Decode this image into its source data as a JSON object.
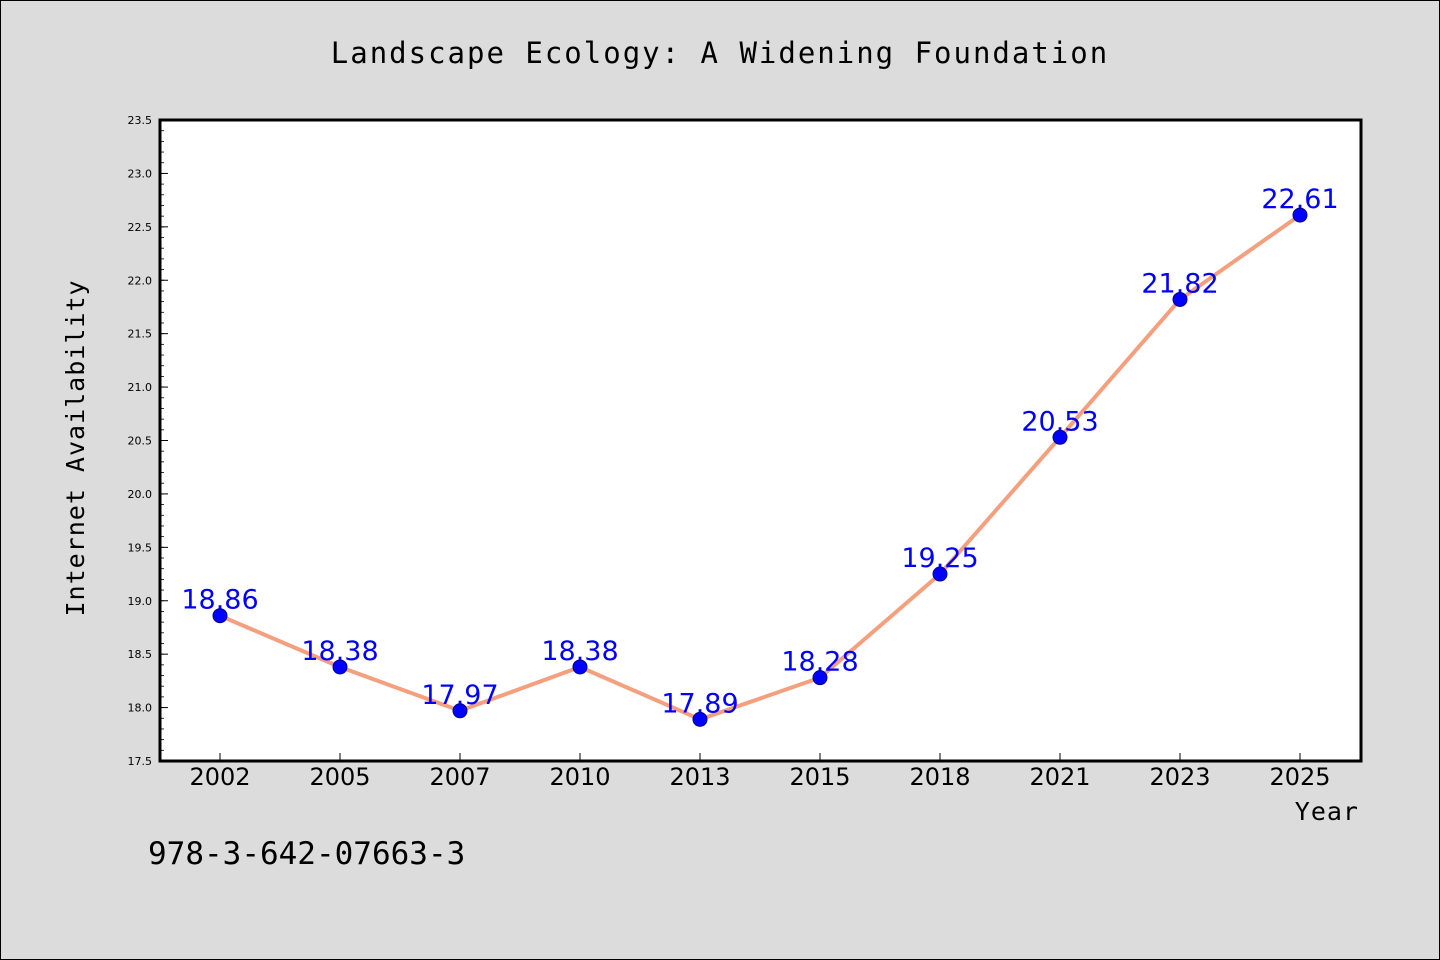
{
  "chart_data": {
    "type": "line",
    "title": "Landscape Ecology: A Widening Foundation",
    "xlabel": "Year",
    "ylabel": "Internet Availability",
    "categories": [
      "2002",
      "2005",
      "2007",
      "2010",
      "2013",
      "2015",
      "2018",
      "2021",
      "2023",
      "2025"
    ],
    "series": [
      {
        "values": [
          18.86,
          18.38,
          17.97,
          18.38,
          17.89,
          18.28,
          19.25,
          20.53,
          21.82,
          22.61
        ],
        "line_color": "#f4a07e",
        "marker_color": "#0000ff"
      }
    ],
    "data_labels": [
      "18.86",
      "18.38",
      "17.97",
      "18.38",
      "17.89",
      "18.28",
      "19.25",
      "20.53",
      "21.82",
      "22.61"
    ],
    "ylim": [
      17.5,
      23.5
    ],
    "yticks": [
      "17.5",
      "18.0",
      "18.5",
      "19.0",
      "19.5",
      "20.0",
      "20.5",
      "21.0",
      "21.5",
      "22.0",
      "22.5",
      "23.0",
      "23.5"
    ],
    "grid": false,
    "legend": "none"
  },
  "footer": {
    "isbn": "978-3-642-07663-3"
  },
  "colors": {
    "background": "#dcdcdc",
    "plot_background": "#ffffff",
    "line": "#f4a07e",
    "marker": "#0000ff",
    "data_label": "#0000ff"
  }
}
